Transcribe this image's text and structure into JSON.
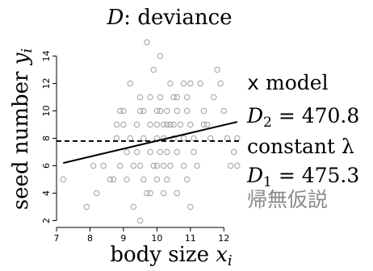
{
  "chart_data": {
    "type": "scatter",
    "title": "D: deviance",
    "title_parts": {
      "var": "D",
      "rest": ": deviance"
    },
    "xlabel": "body size x_i",
    "xlabel_parts": {
      "text": "body size ",
      "var": "x",
      "sub": "i"
    },
    "ylabel": "seed number y_i",
    "ylabel_parts": {
      "text": "seed number ",
      "var": "y",
      "sub": "i"
    },
    "xlim": [
      7,
      12.5
    ],
    "ylim": [
      1.5,
      15.5
    ],
    "xticks": [
      7,
      8,
      9,
      10,
      11,
      12
    ],
    "yticks": [
      2,
      4,
      6,
      8,
      10,
      12,
      14
    ],
    "grid": false,
    "points": [
      [
        7.2,
        5
      ],
      [
        7.9,
        3
      ],
      [
        8.1,
        6
      ],
      [
        8.2,
        4
      ],
      [
        8.4,
        6
      ],
      [
        8.6,
        5
      ],
      [
        8.7,
        5
      ],
      [
        8.8,
        8
      ],
      [
        8.8,
        9
      ],
      [
        8.9,
        10
      ],
      [
        8.9,
        6
      ],
      [
        9.0,
        10
      ],
      [
        9.1,
        7
      ],
      [
        9.1,
        5
      ],
      [
        9.2,
        12
      ],
      [
        9.2,
        8
      ],
      [
        9.3,
        6
      ],
      [
        9.3,
        3
      ],
      [
        9.4,
        9
      ],
      [
        9.4,
        7
      ],
      [
        9.5,
        11
      ],
      [
        9.5,
        6
      ],
      [
        9.5,
        2
      ],
      [
        9.6,
        10
      ],
      [
        9.6,
        8
      ],
      [
        9.6,
        5
      ],
      [
        9.7,
        15
      ],
      [
        9.7,
        4
      ],
      [
        9.8,
        11
      ],
      [
        9.8,
        9
      ],
      [
        9.8,
        7
      ],
      [
        9.8,
        4
      ],
      [
        9.9,
        13
      ],
      [
        9.9,
        6
      ],
      [
        10.0,
        10
      ],
      [
        10.0,
        9
      ],
      [
        10.0,
        8
      ],
      [
        10.0,
        6
      ],
      [
        10.0,
        5
      ],
      [
        10.1,
        14
      ],
      [
        10.1,
        11
      ],
      [
        10.1,
        10
      ],
      [
        10.1,
        7
      ],
      [
        10.2,
        9
      ],
      [
        10.2,
        8
      ],
      [
        10.2,
        6
      ],
      [
        10.2,
        4
      ],
      [
        10.3,
        10
      ],
      [
        10.3,
        9
      ],
      [
        10.3,
        7
      ],
      [
        10.3,
        5
      ],
      [
        10.4,
        12
      ],
      [
        10.4,
        9
      ],
      [
        10.4,
        6
      ],
      [
        10.5,
        11
      ],
      [
        10.5,
        9
      ],
      [
        10.5,
        8
      ],
      [
        10.6,
        10
      ],
      [
        10.6,
        7
      ],
      [
        10.6,
        4
      ],
      [
        10.7,
        9
      ],
      [
        10.8,
        8
      ],
      [
        10.8,
        6
      ],
      [
        10.9,
        11
      ],
      [
        10.9,
        10
      ],
      [
        10.9,
        5
      ],
      [
        11.0,
        12
      ],
      [
        11.0,
        9
      ],
      [
        11.0,
        3
      ],
      [
        11.1,
        8
      ],
      [
        11.2,
        6
      ],
      [
        11.3,
        12
      ],
      [
        11.4,
        10
      ],
      [
        11.5,
        9
      ],
      [
        11.6,
        8
      ],
      [
        11.7,
        11
      ],
      [
        11.8,
        13
      ],
      [
        11.9,
        12
      ],
      [
        12.0,
        10
      ],
      [
        12.1,
        8
      ],
      [
        12.2,
        6
      ],
      [
        12.3,
        7
      ],
      [
        12.4,
        8
      ],
      [
        12.4,
        6
      ],
      [
        9.0,
        9
      ],
      [
        9.5,
        10
      ],
      [
        10.8,
        12
      ],
      [
        11.1,
        7
      ],
      [
        11.4,
        9
      ],
      [
        10.6,
        11
      ]
    ],
    "lines": [
      {
        "name": "x model",
        "style": "solid",
        "x": [
          7.2,
          12.4
        ],
        "y": [
          6.2,
          9.2
        ]
      },
      {
        "name": "constant λ",
        "style": "dashed",
        "x": [
          7.0,
          12.5
        ],
        "y": [
          7.8,
          7.8
        ]
      }
    ],
    "annotations": [
      {
        "kind": "mono",
        "mono": "x",
        "rest": " model"
      },
      {
        "kind": "deviance",
        "var": "D",
        "sub": "2",
        "rest": " = 470.8"
      },
      {
        "kind": "plain",
        "text": "constant λ"
      },
      {
        "kind": "deviance",
        "var": "D",
        "sub": "1",
        "rest": " = 475.3"
      },
      {
        "kind": "gray",
        "text": "帰無仮説"
      }
    ],
    "colors": {
      "points": "#a0a0a0",
      "lines": "#000000",
      "note_gray": "#8a8a8a"
    }
  }
}
